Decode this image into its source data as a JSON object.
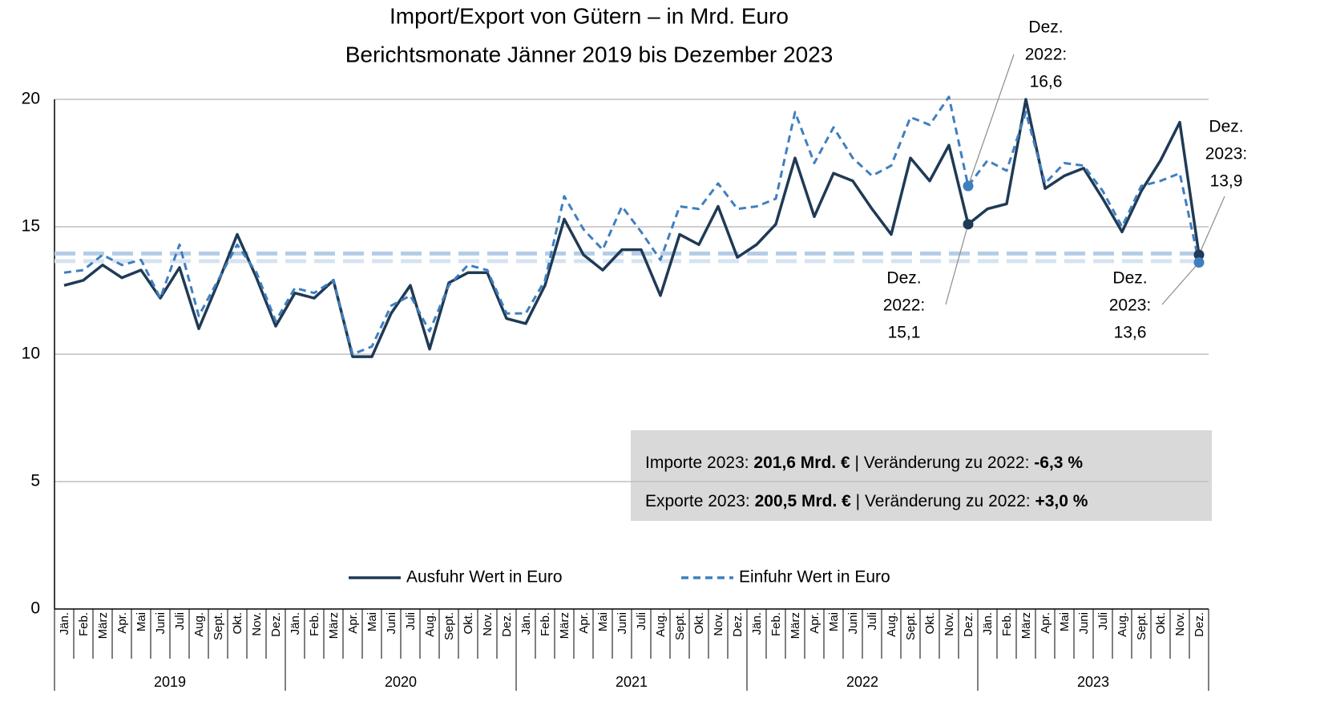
{
  "chart_data": {
    "type": "line",
    "title": [
      "Import/Export von Gütern – in Mrd. Euro",
      "Berichtsmonate Jänner 2019 bis Dezember 2023"
    ],
    "categories": [
      "Jän.",
      "Feb.",
      "März",
      "Apr.",
      "Mai",
      "Juni",
      "Juli",
      "Aug.",
      "Sept.",
      "Okt.",
      "Nov.",
      "Dez.",
      "Jän.",
      "Feb.",
      "März",
      "Apr.",
      "Mai",
      "Juni",
      "Juli",
      "Aug.",
      "Sept.",
      "Okt.",
      "Nov.",
      "Dez.",
      "Jän.",
      "Feb.",
      "März",
      "Apr.",
      "Mai",
      "Juni",
      "Juli",
      "Aug.",
      "Sept.",
      "Okt.",
      "Nov.",
      "Dez.",
      "Jän.",
      "Feb.",
      "März",
      "Apr.",
      "Mai",
      "Juni",
      "Juli",
      "Aug.",
      "Sept.",
      "Okt.",
      "Nov.",
      "Dez.",
      "Jän.",
      "Feb.",
      "März",
      "Apr.",
      "Mai",
      "Juni",
      "Juli",
      "Aug.",
      "Sept.",
      "Okt.",
      "Nov.",
      "Dez."
    ],
    "year_groups": [
      "2019",
      "2020",
      "2021",
      "2022",
      "2023"
    ],
    "series": [
      {
        "name": "Ausfuhr Wert in Euro",
        "color": "#1f3a55",
        "dashed": false,
        "values": [
          12.7,
          12.9,
          13.5,
          13.0,
          13.3,
          12.2,
          13.4,
          11.0,
          12.8,
          14.7,
          13.0,
          11.1,
          12.4,
          12.2,
          12.9,
          9.9,
          9.9,
          11.6,
          12.7,
          10.2,
          12.8,
          13.2,
          13.2,
          11.4,
          11.2,
          12.7,
          15.3,
          13.9,
          13.3,
          14.1,
          14.1,
          12.3,
          14.7,
          14.3,
          15.8,
          13.8,
          14.3,
          15.1,
          17.7,
          15.4,
          17.1,
          16.8,
          15.7,
          14.7,
          17.7,
          16.8,
          18.2,
          15.1,
          15.7,
          15.9,
          20.0,
          16.5,
          17.0,
          17.3,
          16.1,
          14.8,
          16.4,
          17.6,
          19.1,
          13.9
        ]
      },
      {
        "name": "Einfuhr Wert in Euro",
        "color": "#3f7fbf",
        "dashed": true,
        "values": [
          13.2,
          13.3,
          13.9,
          13.5,
          13.7,
          12.2,
          14.3,
          11.5,
          12.9,
          14.3,
          13.2,
          11.3,
          12.6,
          12.4,
          12.9,
          10.0,
          10.3,
          11.9,
          12.3,
          10.9,
          12.7,
          13.5,
          13.3,
          11.6,
          11.6,
          12.9,
          16.2,
          14.9,
          14.1,
          15.8,
          14.8,
          13.7,
          15.8,
          15.7,
          16.7,
          15.7,
          15.8,
          16.1,
          19.5,
          17.5,
          18.9,
          17.7,
          17.0,
          17.4,
          19.3,
          19.0,
          20.1,
          16.6,
          17.6,
          17.2,
          19.5,
          16.7,
          17.5,
          17.4,
          16.4,
          15.0,
          16.6,
          16.8,
          17.1,
          13.6
        ]
      }
    ],
    "reference_lines": [
      {
        "value": 13.95,
        "color": "#b4cde6"
      },
      {
        "value": 13.65,
        "color": "#d6e3f1"
      }
    ],
    "ylim": [
      0,
      20
    ],
    "yticks": [
      0,
      5,
      10,
      15,
      20
    ],
    "grid": true,
    "annotations": [
      {
        "series": 1,
        "index": 47,
        "lines": [
          "Dez.",
          "2022:",
          "16,6"
        ]
      },
      {
        "series": 0,
        "index": 47,
        "lines": [
          "Dez.",
          "2022:",
          "15,1"
        ]
      },
      {
        "series": 0,
        "index": 59,
        "lines": [
          "Dez.",
          "2023:",
          "13,9"
        ]
      },
      {
        "series": 1,
        "index": 59,
        "lines": [
          "Dez.",
          "2023:",
          "13,6"
        ]
      }
    ],
    "info_box": [
      [
        {
          "text": "Importe 2023: "
        },
        {
          "text": "201,6 Mrd. €",
          "bold": true
        },
        {
          "text": " | Veränderung zu 2022: "
        },
        {
          "text": "-6,3 %",
          "bold": true
        }
      ],
      [
        {
          "text": "Exporte 2023: "
        },
        {
          "text": "200,5 Mrd. €",
          "bold": true
        },
        {
          "text": " | Veränderung zu 2022: "
        },
        {
          "text": "+3,0 %",
          "bold": true
        }
      ]
    ]
  }
}
